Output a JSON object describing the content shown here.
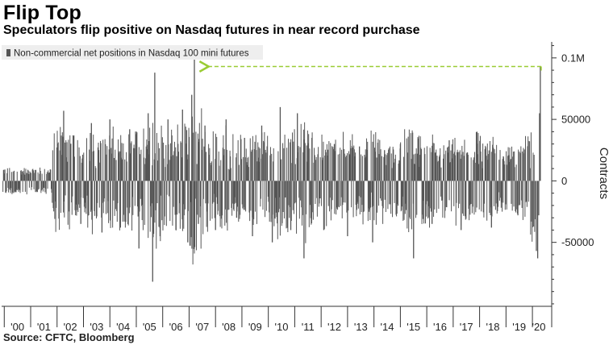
{
  "title": "Flip Top",
  "subtitle": "Speculators flip positive on Nasdaq futures in near record purchase",
  "source": "Source: CFTC, Bloomberg",
  "colors": {
    "bars": "#555555",
    "arrow": "#99cc33",
    "axis": "#333333",
    "legend_bg": "#eeeeee"
  },
  "chart_data": {
    "type": "bar",
    "title": "Flip Top",
    "subtitle": "Speculators flip positive on Nasdaq futures in near record purchase",
    "ylabel": "Contracts",
    "ylim": [
      -102000,
      113000
    ],
    "y_ticks": [
      -50000,
      0,
      50000,
      100000
    ],
    "y_tick_labels": [
      "-50000",
      "0",
      "50000",
      "0.1M"
    ],
    "x_tick_labels": [
      "'00",
      "'01",
      "'02",
      "'03",
      "'04",
      "'05",
      "'06",
      "'07",
      "'08",
      "'09",
      "'10",
      "'11",
      "'12",
      "'13",
      "'14",
      "'15",
      "'16",
      "'17",
      "'18",
      "'19",
      "'20"
    ],
    "x_range_years": [
      1999.9,
      2020.7
    ],
    "legend": "Non-commercial net positions in Nasdaq 100 mini futures",
    "legend_position": "top-left",
    "grid": false,
    "series": [
      {
        "name": "Non-commercial net positions in Nasdaq 100 mini futures",
        "points": [
          {
            "x": 2002.25,
            "y": 57000
          },
          {
            "x": 2002.9,
            "y": -35000
          },
          {
            "x": 2003.3,
            "y": 47000
          },
          {
            "x": 2003.7,
            "y": -42000
          },
          {
            "x": 2004.0,
            "y": 50000
          },
          {
            "x": 2004.4,
            "y": -38000
          },
          {
            "x": 2004.75,
            "y": 42000
          },
          {
            "x": 2005.1,
            "y": -55000
          },
          {
            "x": 2005.45,
            "y": 55000
          },
          {
            "x": 2005.62,
            "y": -82000
          },
          {
            "x": 2005.7,
            "y": 88000
          },
          {
            "x": 2005.9,
            "y": -45000
          },
          {
            "x": 2006.2,
            "y": 50000
          },
          {
            "x": 2006.5,
            "y": -40000
          },
          {
            "x": 2006.75,
            "y": 58000
          },
          {
            "x": 2006.95,
            "y": -50000
          },
          {
            "x": 2007.1,
            "y": 70000
          },
          {
            "x": 2007.2,
            "y": 103000
          },
          {
            "x": 2007.35,
            "y": -35000
          },
          {
            "x": 2007.6,
            "y": 45000
          },
          {
            "x": 2008.0,
            "y": -40000
          },
          {
            "x": 2008.4,
            "y": 50000
          },
          {
            "x": 2008.8,
            "y": -30000
          },
          {
            "x": 2009.1,
            "y": 35000
          },
          {
            "x": 2009.4,
            "y": -45000
          },
          {
            "x": 2009.75,
            "y": 45000
          },
          {
            "x": 2010.15,
            "y": -50000
          },
          {
            "x": 2010.45,
            "y": 60000
          },
          {
            "x": 2010.85,
            "y": -40000
          },
          {
            "x": 2011.1,
            "y": 55000
          },
          {
            "x": 2011.35,
            "y": -63000
          },
          {
            "x": 2011.65,
            "y": 35000
          },
          {
            "x": 2012.1,
            "y": -40000
          },
          {
            "x": 2012.5,
            "y": 30000
          },
          {
            "x": 2013.0,
            "y": -45000
          },
          {
            "x": 2013.45,
            "y": 28000
          },
          {
            "x": 2013.95,
            "y": -50000
          },
          {
            "x": 2014.4,
            "y": 25000
          },
          {
            "x": 2015.0,
            "y": 30000
          },
          {
            "x": 2015.5,
            "y": -63000
          },
          {
            "x": 2016.2,
            "y": -35000
          },
          {
            "x": 2016.85,
            "y": 33000
          },
          {
            "x": 2017.3,
            "y": -40000
          },
          {
            "x": 2017.9,
            "y": 40000
          },
          {
            "x": 2018.45,
            "y": -38000
          },
          {
            "x": 2018.9,
            "y": 20000
          },
          {
            "x": 2019.45,
            "y": -28000
          },
          {
            "x": 2020.15,
            "y": -57000
          },
          {
            "x": 2020.2,
            "y": -63000
          },
          {
            "x": 2020.24,
            "y": -28000
          },
          {
            "x": 2020.27,
            "y": 55000
          },
          {
            "x": 2020.3,
            "y": 93000
          }
        ]
      }
    ],
    "annotation": {
      "type": "dashed-arrow",
      "from_x": 2020.3,
      "to_x": 2007.2,
      "y": 93000
    }
  }
}
